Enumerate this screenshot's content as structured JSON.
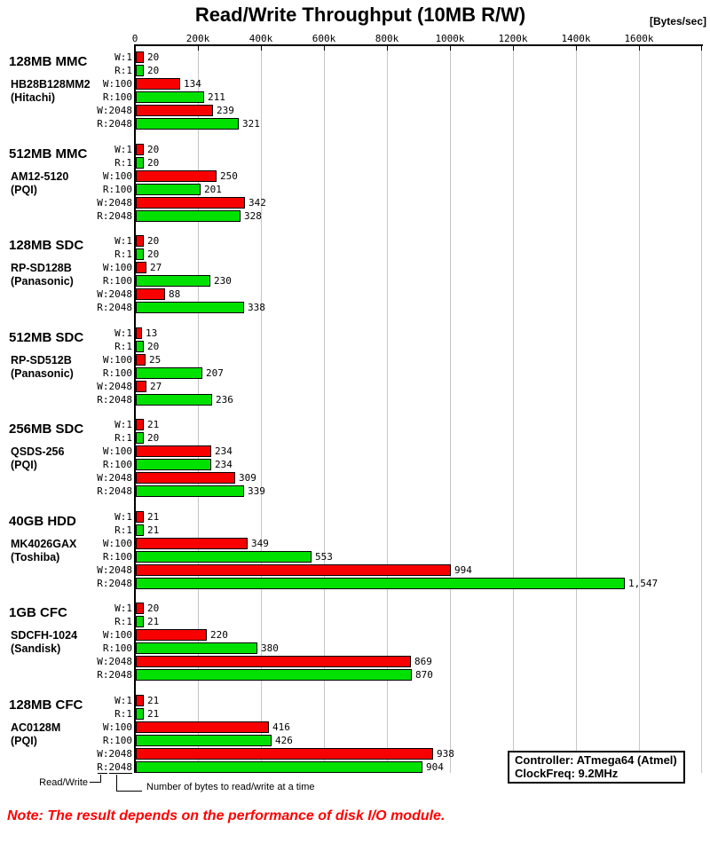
{
  "header": {
    "title": "Read/Write Throughput (10MB R/W)",
    "units": "[Bytes/sec]"
  },
  "chart_data": {
    "type": "bar",
    "orientation": "horizontal",
    "grouped": true,
    "title": "Read/Write Throughput (10MB R/W)",
    "x_axis": {
      "unit_label": "[Bytes/sec]",
      "tick_labels": [
        "0",
        "200k",
        "400k",
        "600k",
        "800k",
        "1000k",
        "1200k",
        "1400k",
        "1600k"
      ],
      "tick_interval": 200,
      "axis_max": 1800,
      "grid": true
    },
    "bar_labels": [
      "W:1",
      "R:1",
      "W:100",
      "R:100",
      "W:2048",
      "R:2048"
    ],
    "values_in": "thousands of bytes/sec",
    "colors": {
      "write_bar": "#f80000",
      "read_bar": "#00e100",
      "bar_border": "#000000",
      "gridline": "#c6c6c6",
      "note_red": "#ff0000"
    },
    "groups": [
      {
        "name": "128MB MMC",
        "model": "HB28B128MM2",
        "maker": "(Hitachi)",
        "values": [
          20,
          20,
          134,
          211,
          239,
          321
        ]
      },
      {
        "name": "512MB MMC",
        "model": "AM12-5120",
        "maker": "(PQI)",
        "values": [
          20,
          20,
          250,
          201,
          342,
          328
        ]
      },
      {
        "name": "128MB SDC",
        "model": "RP-SD128B",
        "maker": "(Panasonic)",
        "values": [
          20,
          20,
          27,
          230,
          88,
          338
        ]
      },
      {
        "name": "512MB SDC",
        "model": "RP-SD512B",
        "maker": "(Panasonic)",
        "values": [
          13,
          20,
          25,
          207,
          27,
          236
        ]
      },
      {
        "name": "256MB SDC",
        "model": "QSDS-256",
        "maker": "(PQI)",
        "values": [
          21,
          20,
          234,
          234,
          309,
          339
        ]
      },
      {
        "name": "40GB HDD",
        "model": "MK4026GAX",
        "maker": "(Toshiba)",
        "values": [
          21,
          21,
          349,
          553,
          994,
          1547
        ]
      },
      {
        "name": "1GB CFC",
        "model": "SDCFH-1024",
        "maker": "(Sandisk)",
        "values": [
          20,
          21,
          220,
          380,
          869,
          870
        ]
      },
      {
        "name": "128MB CFC",
        "model": "AC0128M",
        "maker": "(PQI)",
        "values": [
          21,
          21,
          416,
          426,
          938,
          904
        ]
      }
    ]
  },
  "annotations": {
    "read_write": "Read/Write",
    "bytes_at_a_time": "Number of bytes to read/write at a time"
  },
  "info_box": {
    "line1": "Controller: ATmega64 (Atmel)",
    "line2": "ClockFreq: 9.2MHz"
  },
  "note": "Note: The result depends on the performance of disk I/O module."
}
